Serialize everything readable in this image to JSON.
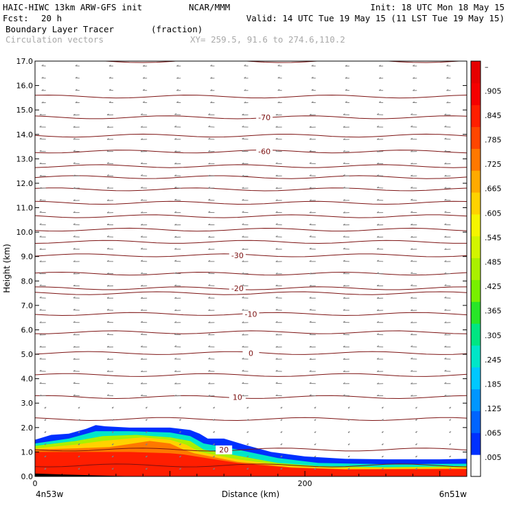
{
  "header": {
    "model": "HAIC-HIWC 13km ARW-GFS init",
    "org": "NCAR/MMM",
    "init": "Init: 18 UTC Mon 18 May 15",
    "fcst_label": "Fcst:",
    "fcst_value": "20 h",
    "valid": "Valid: 14 UTC Tue 19 May 15 (11 LST Tue 19 May 15)",
    "field_name": "Boundary Layer Tracer",
    "field_units": "(fraction)",
    "vector_name": "Circulation vectors",
    "xsec": "XY= 259.5, 91.6 to 274.6,110.2"
  },
  "colors": {
    "isotherm": "#7b1010",
    "vector": "#808080",
    "terrain": "#000000"
  },
  "chart_data": {
    "type": "heatmap",
    "xlabel": "Distance (km)",
    "ylabel": "Height (km)",
    "xlim": [
      0,
      320
    ],
    "ylim": [
      0,
      17
    ],
    "x_ticks": [
      {
        "value": 0,
        "label": "0"
      },
      {
        "value": 200,
        "label": "200"
      }
    ],
    "y_ticks": [
      {
        "value": 0,
        "label": "0.0"
      },
      {
        "value": 1,
        "label": "1.0"
      },
      {
        "value": 2,
        "label": "2.0"
      },
      {
        "value": 3,
        "label": "3.0"
      },
      {
        "value": 4,
        "label": "4.0"
      },
      {
        "value": 5,
        "label": "5.0"
      },
      {
        "value": 6,
        "label": "6.0"
      },
      {
        "value": 7,
        "label": "7.0"
      },
      {
        "value": 8,
        "label": "8.0"
      },
      {
        "value": 9,
        "label": "9.0"
      },
      {
        "value": 10,
        "label": "10.0"
      },
      {
        "value": 11,
        "label": "11.0"
      },
      {
        "value": 12,
        "label": "12.0"
      },
      {
        "value": 13,
        "label": "13.0"
      },
      {
        "value": 14,
        "label": "14.0"
      },
      {
        "value": 15,
        "label": "15.0"
      },
      {
        "value": 16,
        "label": "16.0"
      },
      {
        "value": 17,
        "label": "17.0"
      }
    ],
    "left_endpoint": "4n53w",
    "right_endpoint": "6n51w",
    "colorbar": {
      "labels": [
        ".005",
        ".065",
        ".125",
        ".185",
        ".245",
        ".305",
        ".365",
        ".425",
        ".485",
        ".545",
        ".605",
        ".665",
        ".725",
        ".785",
        ".845",
        ".905",
        "–"
      ],
      "colors": [
        "#ffffff",
        "#0030ff",
        "#0064ff",
        "#0096ff",
        "#00c8ff",
        "#00e6c8",
        "#00e682",
        "#28e628",
        "#78f000",
        "#aaf000",
        "#d2f500",
        "#f5f500",
        "#ffd200",
        "#ffaa00",
        "#ff7800",
        "#ff4600",
        "#ff1e00",
        "#f50000",
        "#e60000"
      ]
    },
    "tracer_contours": [
      {
        "value": 0.005,
        "color": "#0030ff",
        "points": [
          [
            0,
            1.5
          ],
          [
            12,
            1.7
          ],
          [
            25,
            1.75
          ],
          [
            38,
            1.95
          ],
          [
            45,
            2.1
          ],
          [
            52,
            2.05
          ],
          [
            70,
            2.0
          ],
          [
            100,
            2.0
          ],
          [
            115,
            1.9
          ],
          [
            122,
            1.75
          ],
          [
            128,
            1.55
          ],
          [
            140,
            1.55
          ],
          [
            155,
            1.3
          ],
          [
            175,
            1.0
          ],
          [
            200,
            0.82
          ],
          [
            230,
            0.72
          ],
          [
            260,
            0.7
          ],
          [
            300,
            0.7
          ],
          [
            320,
            0.72
          ]
        ]
      },
      {
        "value": 0.125,
        "color": "#00e6c8",
        "points": [
          [
            0,
            1.35
          ],
          [
            25,
            1.55
          ],
          [
            45,
            1.85
          ],
          [
            70,
            1.85
          ],
          [
            100,
            1.8
          ],
          [
            115,
            1.65
          ],
          [
            125,
            1.35
          ],
          [
            150,
            1.1
          ],
          [
            180,
            0.75
          ],
          [
            210,
            0.55
          ],
          [
            260,
            0.5
          ],
          [
            320,
            0.52
          ]
        ]
      },
      {
        "value": 0.305,
        "color": "#aaf000",
        "points": [
          [
            0,
            1.25
          ],
          [
            30,
            1.45
          ],
          [
            50,
            1.65
          ],
          [
            75,
            1.7
          ],
          [
            100,
            1.6
          ],
          [
            115,
            1.45
          ],
          [
            125,
            1.1
          ],
          [
            150,
            0.85
          ],
          [
            180,
            0.55
          ],
          [
            210,
            0.42
          ],
          [
            260,
            0.38
          ],
          [
            320,
            0.42
          ]
        ]
      },
      {
        "value": 0.485,
        "color": "#ffd200",
        "points": [
          [
            0,
            1.15
          ],
          [
            30,
            1.3
          ],
          [
            50,
            1.45
          ],
          [
            80,
            1.6
          ],
          [
            100,
            1.5
          ],
          [
            112,
            1.3
          ],
          [
            122,
            1.0
          ],
          [
            150,
            0.7
          ],
          [
            185,
            0.45
          ],
          [
            220,
            0.35
          ],
          [
            320,
            0.36
          ]
        ]
      },
      {
        "value": 0.665,
        "color": "#ff7800",
        "points": [
          [
            0,
            1.1
          ],
          [
            30,
            1.15
          ],
          [
            55,
            1.2
          ],
          [
            85,
            1.45
          ],
          [
            100,
            1.35
          ],
          [
            110,
            1.1
          ],
          [
            118,
            0.95
          ],
          [
            150,
            0.6
          ],
          [
            190,
            0.38
          ],
          [
            230,
            0.3
          ],
          [
            320,
            0.32
          ]
        ]
      },
      {
        "value": 0.845,
        "color": "#ff1e00",
        "points": [
          [
            0,
            1.0
          ],
          [
            40,
            1.0
          ],
          [
            70,
            1.0
          ],
          [
            100,
            0.95
          ],
          [
            110,
            0.9
          ],
          [
            150,
            0.55
          ],
          [
            190,
            0.35
          ],
          [
            230,
            0.28
          ],
          [
            320,
            0.3
          ]
        ]
      }
    ],
    "isotherms": [
      {
        "level": 17.0,
        "label": ""
      },
      {
        "level": 15.55,
        "label": ""
      },
      {
        "level": 14.7,
        "label": "-70",
        "label_x": 170
      },
      {
        "level": 13.95,
        "label": ""
      },
      {
        "level": 13.3,
        "label": "-60",
        "label_x": 170
      },
      {
        "level": 12.7,
        "label": ""
      },
      {
        "level": 12.25,
        "label": ""
      },
      {
        "level": 11.75,
        "label": ""
      },
      {
        "level": 11.2,
        "label": ""
      },
      {
        "level": 10.65,
        "label": ""
      },
      {
        "level": 10.1,
        "label": ""
      },
      {
        "level": 9.6,
        "label": ""
      },
      {
        "level": 9.05,
        "label": "-30",
        "label_x": 150
      },
      {
        "level": 8.3,
        "label": ""
      },
      {
        "level": 7.7,
        "label": "-20",
        "label_x": 150
      },
      {
        "level": 7.5,
        "label": ""
      },
      {
        "level": 6.65,
        "label": "-10",
        "label_x": 160
      },
      {
        "level": 5.9,
        "label": ""
      },
      {
        "level": 5.05,
        "label": "0",
        "label_x": 160
      },
      {
        "level": 4.15,
        "label": ""
      },
      {
        "level": 3.25,
        "label": "10",
        "label_x": 150
      },
      {
        "level": 2.35,
        "label": ""
      },
      {
        "level": 1.1,
        "label": "20",
        "label_x": 140
      },
      {
        "level": 0.45,
        "label": ""
      }
    ],
    "terrain": [
      [
        0,
        0.12
      ],
      [
        20,
        0.08
      ],
      [
        40,
        0.05
      ],
      [
        60,
        0.02
      ],
      [
        80,
        0.0
      ],
      [
        100,
        0.0
      ],
      [
        320,
        0.0
      ]
    ]
  }
}
